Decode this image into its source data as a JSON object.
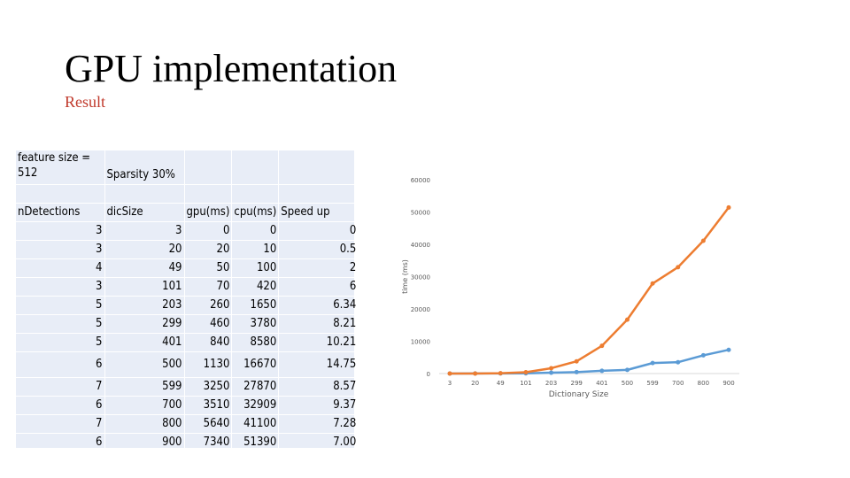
{
  "slide": {
    "title": "GPU implementation",
    "subtitle": "Result"
  },
  "table": {
    "meta": {
      "feature_size_label": "feature size  =",
      "feature_size_value": "512",
      "sparsity_label": "Sparsity  30%"
    },
    "headers": [
      "nDetections",
      "dicSize",
      "gpu(ms)",
      "cpu(ms)",
      "Speed up"
    ],
    "rows": [
      [
        "3",
        "3",
        "0",
        "0",
        "0"
      ],
      [
        "3",
        "20",
        "20",
        "10",
        "0.5"
      ],
      [
        "4",
        "49",
        "50",
        "100",
        "2"
      ],
      [
        "3",
        "101",
        "70",
        "420",
        "6"
      ],
      [
        "5",
        "203",
        "260",
        "1650",
        "6.34"
      ],
      [
        "5",
        "299",
        "460",
        "3780",
        "8.21"
      ],
      [
        "5",
        "401",
        "840",
        "8580",
        "10.21"
      ],
      [
        "6",
        "500",
        "1130",
        "16670",
        "14.75"
      ],
      [
        "7",
        "599",
        "3250",
        "27870",
        "8.57"
      ],
      [
        "6",
        "700",
        "3510",
        "32909",
        "9.37"
      ],
      [
        "7",
        "800",
        "5640",
        "41100",
        "7.28"
      ],
      [
        "6",
        "900",
        "7340",
        "51390",
        "7.00"
      ]
    ]
  },
  "chart_data": {
    "type": "line",
    "xlabel": "Dictionary Size",
    "ylabel": "time (ms)",
    "categories": [
      "3",
      "20",
      "49",
      "101",
      "203",
      "299",
      "401",
      "500",
      "599",
      "700",
      "800",
      "900"
    ],
    "ylim": [
      0,
      60000
    ],
    "yticks": [
      0,
      10000,
      20000,
      30000,
      40000,
      50000,
      60000
    ],
    "grid": false,
    "legend": "none",
    "series": [
      {
        "values": [
          0,
          20,
          50,
          70,
          260,
          460,
          840,
          1130,
          3250,
          3510,
          5640,
          7340
        ],
        "color": "#5b9bd5"
      },
      {
        "values": [
          0,
          10,
          100,
          420,
          1650,
          3780,
          8580,
          16670,
          27870,
          32909,
          41100,
          51390
        ],
        "color": "#ed7d31"
      }
    ]
  }
}
